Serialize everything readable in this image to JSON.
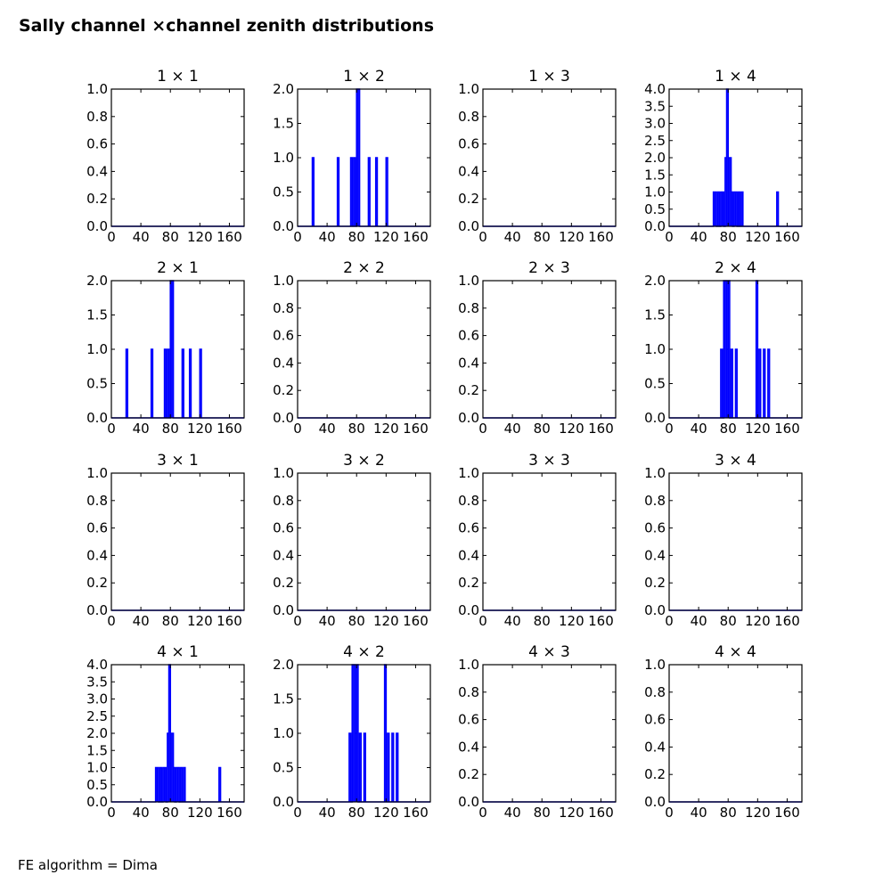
{
  "title": "Sally channel ×channel zenith distributions",
  "footer": "FE algorithm = Dima",
  "colors": {
    "line": "#0000ff",
    "axes": "#000000",
    "background": "#ffffff"
  },
  "chart_data": [
    {
      "type": "histogram",
      "title": "1  × 1",
      "xlim": [
        0,
        180
      ],
      "ylim": [
        0,
        1.0
      ],
      "xticks": [
        "0",
        "40",
        "80",
        "120",
        "160"
      ],
      "yticks": [
        "0.0",
        "0.2",
        "0.4",
        "0.6",
        "0.8",
        "1.0"
      ],
      "bars": []
    },
    {
      "type": "histogram",
      "title": "1  × 2",
      "xlim": [
        0,
        180
      ],
      "ylim": [
        0,
        2.0
      ],
      "xticks": [
        "0",
        "40",
        "80",
        "120",
        "160"
      ],
      "yticks": [
        "0.0",
        "0.5",
        "1.0",
        "1.5",
        "2.0"
      ],
      "bars": [
        [
          20,
          1
        ],
        [
          54,
          1
        ],
        [
          72,
          1
        ],
        [
          76,
          1
        ],
        [
          80,
          2
        ],
        [
          82,
          2
        ],
        [
          96,
          1
        ],
        [
          106,
          1
        ],
        [
          120,
          1
        ]
      ]
    },
    {
      "type": "histogram",
      "title": "1  × 3",
      "xlim": [
        0,
        180
      ],
      "ylim": [
        0,
        1.0
      ],
      "xticks": [
        "0",
        "40",
        "80",
        "120",
        "160"
      ],
      "yticks": [
        "0.0",
        "0.2",
        "0.4",
        "0.6",
        "0.8",
        "1.0"
      ],
      "bars": []
    },
    {
      "type": "histogram",
      "title": "1  × 4",
      "xlim": [
        0,
        180
      ],
      "ylim": [
        0,
        4.0
      ],
      "xticks": [
        "0",
        "40",
        "80",
        "120",
        "160"
      ],
      "yticks": [
        "0.0",
        "0.5",
        "1.0",
        "1.5",
        "2.0",
        "2.5",
        "3.0",
        "3.5",
        "4.0"
      ],
      "bars": [
        [
          60,
          1
        ],
        [
          62,
          1
        ],
        [
          66,
          1
        ],
        [
          70,
          1
        ],
        [
          72,
          1
        ],
        [
          76,
          2
        ],
        [
          78,
          4
        ],
        [
          80,
          2
        ],
        [
          82,
          2
        ],
        [
          84,
          1
        ],
        [
          88,
          1
        ],
        [
          90,
          1
        ],
        [
          94,
          1
        ],
        [
          98,
          1
        ],
        [
          146,
          1
        ]
      ]
    },
    {
      "type": "histogram",
      "title": "2  × 1",
      "xlim": [
        0,
        180
      ],
      "ylim": [
        0,
        2.0
      ],
      "xticks": [
        "0",
        "40",
        "80",
        "120",
        "160"
      ],
      "yticks": [
        "0.0",
        "0.5",
        "1.0",
        "1.5",
        "2.0"
      ],
      "bars": [
        [
          20,
          1
        ],
        [
          54,
          1
        ],
        [
          72,
          1
        ],
        [
          76,
          1
        ],
        [
          80,
          2
        ],
        [
          82,
          2
        ],
        [
          96,
          1
        ],
        [
          106,
          1
        ],
        [
          120,
          1
        ]
      ]
    },
    {
      "type": "histogram",
      "title": "2  × 2",
      "xlim": [
        0,
        180
      ],
      "ylim": [
        0,
        1.0
      ],
      "xticks": [
        "0",
        "40",
        "80",
        "120",
        "160"
      ],
      "yticks": [
        "0.0",
        "0.2",
        "0.4",
        "0.6",
        "0.8",
        "1.0"
      ],
      "bars": []
    },
    {
      "type": "histogram",
      "title": "2  × 3",
      "xlim": [
        0,
        180
      ],
      "ylim": [
        0,
        1.0
      ],
      "xticks": [
        "0",
        "40",
        "80",
        "120",
        "160"
      ],
      "yticks": [
        "0.0",
        "0.2",
        "0.4",
        "0.6",
        "0.8",
        "1.0"
      ],
      "bars": []
    },
    {
      "type": "histogram",
      "title": "2  × 4",
      "xlim": [
        0,
        180
      ],
      "ylim": [
        0,
        2.0
      ],
      "xticks": [
        "0",
        "40",
        "80",
        "120",
        "160"
      ],
      "yticks": [
        "0.0",
        "0.5",
        "1.0",
        "1.5",
        "2.0"
      ],
      "bars": [
        [
          70,
          1
        ],
        [
          74,
          2
        ],
        [
          76,
          2
        ],
        [
          78,
          1
        ],
        [
          80,
          2
        ],
        [
          84,
          1
        ],
        [
          90,
          1
        ],
        [
          118,
          2
        ],
        [
          122,
          1
        ],
        [
          128,
          1
        ],
        [
          134,
          1
        ]
      ]
    },
    {
      "type": "histogram",
      "title": "3  × 1",
      "xlim": [
        0,
        180
      ],
      "ylim": [
        0,
        1.0
      ],
      "xticks": [
        "0",
        "40",
        "80",
        "120",
        "160"
      ],
      "yticks": [
        "0.0",
        "0.2",
        "0.4",
        "0.6",
        "0.8",
        "1.0"
      ],
      "bars": []
    },
    {
      "type": "histogram",
      "title": "3  × 2",
      "xlim": [
        0,
        180
      ],
      "ylim": [
        0,
        1.0
      ],
      "xticks": [
        "0",
        "40",
        "80",
        "120",
        "160"
      ],
      "yticks": [
        "0.0",
        "0.2",
        "0.4",
        "0.6",
        "0.8",
        "1.0"
      ],
      "bars": []
    },
    {
      "type": "histogram",
      "title": "3  × 3",
      "xlim": [
        0,
        180
      ],
      "ylim": [
        0,
        1.0
      ],
      "xticks": [
        "0",
        "40",
        "80",
        "120",
        "160"
      ],
      "yticks": [
        "0.0",
        "0.2",
        "0.4",
        "0.6",
        "0.8",
        "1.0"
      ],
      "bars": []
    },
    {
      "type": "histogram",
      "title": "3  × 4",
      "xlim": [
        0,
        180
      ],
      "ylim": [
        0,
        1.0
      ],
      "xticks": [
        "0",
        "40",
        "80",
        "120",
        "160"
      ],
      "yticks": [
        "0.0",
        "0.2",
        "0.4",
        "0.6",
        "0.8",
        "1.0"
      ],
      "bars": []
    },
    {
      "type": "histogram",
      "title": "4  × 1",
      "xlim": [
        0,
        180
      ],
      "ylim": [
        0,
        4.0
      ],
      "xticks": [
        "0",
        "40",
        "80",
        "120",
        "160"
      ],
      "yticks": [
        "0.0",
        "0.5",
        "1.0",
        "1.5",
        "2.0",
        "2.5",
        "3.0",
        "3.5",
        "4.0"
      ],
      "bars": [
        [
          60,
          1
        ],
        [
          62,
          1
        ],
        [
          66,
          1
        ],
        [
          70,
          1
        ],
        [
          72,
          1
        ],
        [
          76,
          2
        ],
        [
          78,
          4
        ],
        [
          80,
          2
        ],
        [
          82,
          2
        ],
        [
          84,
          1
        ],
        [
          88,
          1
        ],
        [
          90,
          1
        ],
        [
          94,
          1
        ],
        [
          98,
          1
        ],
        [
          146,
          1
        ]
      ]
    },
    {
      "type": "histogram",
      "title": "4  × 2",
      "xlim": [
        0,
        180
      ],
      "ylim": [
        0,
        2.0
      ],
      "xticks": [
        "0",
        "40",
        "80",
        "120",
        "160"
      ],
      "yticks": [
        "0.0",
        "0.5",
        "1.0",
        "1.5",
        "2.0"
      ],
      "bars": [
        [
          70,
          1
        ],
        [
          74,
          2
        ],
        [
          76,
          2
        ],
        [
          78,
          1
        ],
        [
          80,
          2
        ],
        [
          84,
          1
        ],
        [
          90,
          1
        ],
        [
          118,
          2
        ],
        [
          122,
          1
        ],
        [
          128,
          1
        ],
        [
          134,
          1
        ]
      ]
    },
    {
      "type": "histogram",
      "title": "4  × 3",
      "xlim": [
        0,
        180
      ],
      "ylim": [
        0,
        1.0
      ],
      "xticks": [
        "0",
        "40",
        "80",
        "120",
        "160"
      ],
      "yticks": [
        "0.0",
        "0.2",
        "0.4",
        "0.6",
        "0.8",
        "1.0"
      ],
      "bars": []
    },
    {
      "type": "histogram",
      "title": "4  × 4",
      "xlim": [
        0,
        180
      ],
      "ylim": [
        0,
        1.0
      ],
      "xticks": [
        "0",
        "40",
        "80",
        "120",
        "160"
      ],
      "yticks": [
        "0.0",
        "0.2",
        "0.4",
        "0.6",
        "0.8",
        "1.0"
      ],
      "bars": []
    }
  ]
}
